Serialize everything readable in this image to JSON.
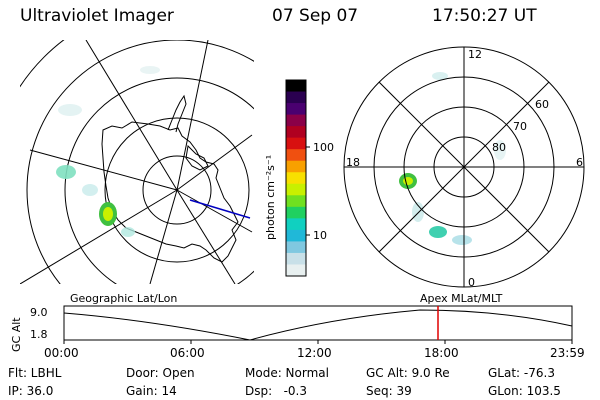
{
  "header": {
    "title": "Ultraviolet Imager",
    "date": "07 Sep 07",
    "time": "17:50:27 UT"
  },
  "colorbar": {
    "unit_label": "photon cm⁻²s⁻¹",
    "ticks": [
      "100",
      "10"
    ],
    "colors": [
      "#000000",
      "#2a0050",
      "#4a0070",
      "#8a0048",
      "#b00020",
      "#d81010",
      "#f05010",
      "#f8a000",
      "#f8e000",
      "#c8f000",
      "#70e020",
      "#20d060",
      "#10d0c0",
      "#20b8d8",
      "#80c8e0",
      "#c8e0e8",
      "#e8f0f0"
    ]
  },
  "geo_map": {
    "label": "Geographic Lat/Lon"
  },
  "polar_map": {
    "label": "Apex MLat/MLT",
    "mlt_labels": {
      "top": "12",
      "left": "18",
      "right": "6",
      "bottom": "0"
    },
    "lat_labels": [
      "60",
      "70",
      "80"
    ]
  },
  "timeline": {
    "y_label": "GC Alt",
    "y_ticks": [
      "9.0",
      "1.8"
    ],
    "x_ticks": [
      "00:00",
      "06:00",
      "12:00",
      "18:00",
      "23:59"
    ],
    "marker_color": "#e00000"
  },
  "status": {
    "flt": "Flt: LBHL",
    "ip": "IP: 36.0",
    "door": "Door: Open",
    "gain": "Gain: 14",
    "mode": "Mode: Normal",
    "dsp": "Dsp:   -0.3",
    "gcalt": "GC Alt: 9.0 Re",
    "seq": "Seq: 39",
    "glat": "GLat: -76.3",
    "glon": "GLon: 103.5"
  }
}
